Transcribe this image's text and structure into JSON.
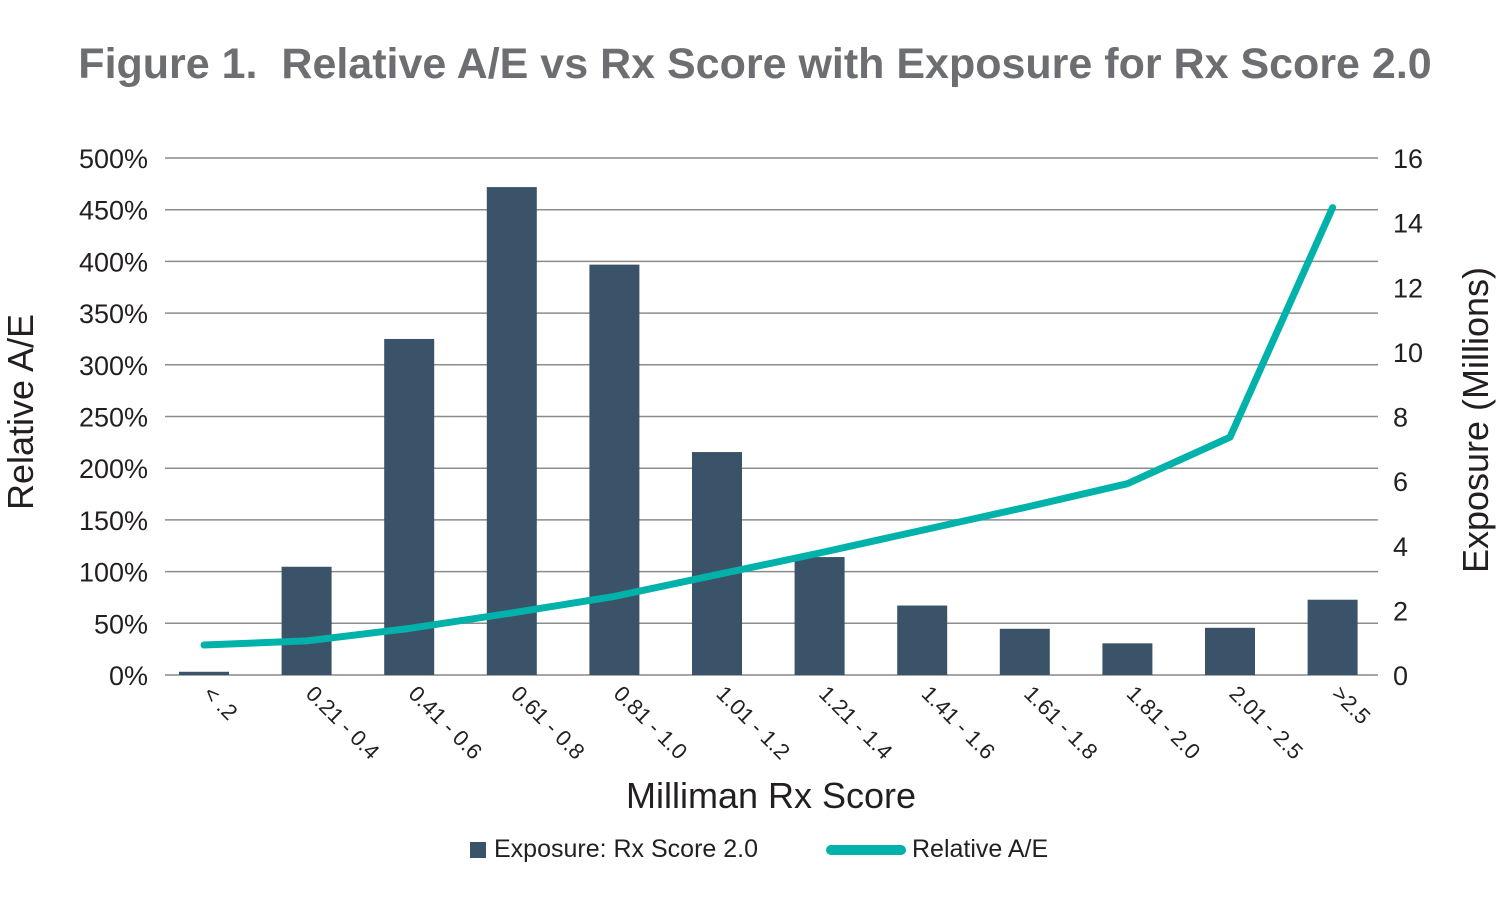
{
  "chart_data": {
    "type": "bar+line",
    "title": "Figure 1.  Relative A/E vs Rx Score with Exposure for Rx Score 2.0",
    "xlabel": "Milliman Rx Score",
    "ylabel_left": "Relative A/E",
    "ylabel_right": "Exposure (Millions)",
    "categories": [
      "< .2",
      "0.21 - 0.4",
      "0.41 - 0.6",
      "0.61 - 0.8",
      "0.81 - 1.0",
      "1.01 - 1.2",
      "1.21 - 1.4",
      "1.41 - 1.6",
      "1.61 - 1.8",
      "1.81 - 2.0",
      "2.01 - 2.5",
      ">2.5"
    ],
    "left_ticks": [
      "0%",
      "50%",
      "100%",
      "150%",
      "200%",
      "250%",
      "300%",
      "350%",
      "400%",
      "450%",
      "500%"
    ],
    "right_ticks": [
      "0",
      "2",
      "4",
      "6",
      "8",
      "10",
      "12",
      "14",
      "16"
    ],
    "ylim_left": [
      0,
      500
    ],
    "ylim_right": [
      0,
      16
    ],
    "grid": true,
    "legend_position": "bottom",
    "series": [
      {
        "name": "Exposure: Rx Score 2.0",
        "type": "bar",
        "axis": "right",
        "color": "#3a5368",
        "values": [
          0.1,
          3.35,
          10.4,
          15.1,
          12.7,
          6.9,
          3.65,
          2.15,
          1.43,
          0.98,
          1.46,
          2.33
        ]
      },
      {
        "name": "Relative A/E",
        "type": "line",
        "axis": "left",
        "color": "#00b2a9",
        "values": [
          29,
          33,
          45,
          60,
          76,
          97,
          118,
          140,
          162,
          185,
          230,
          452
        ]
      }
    ]
  }
}
